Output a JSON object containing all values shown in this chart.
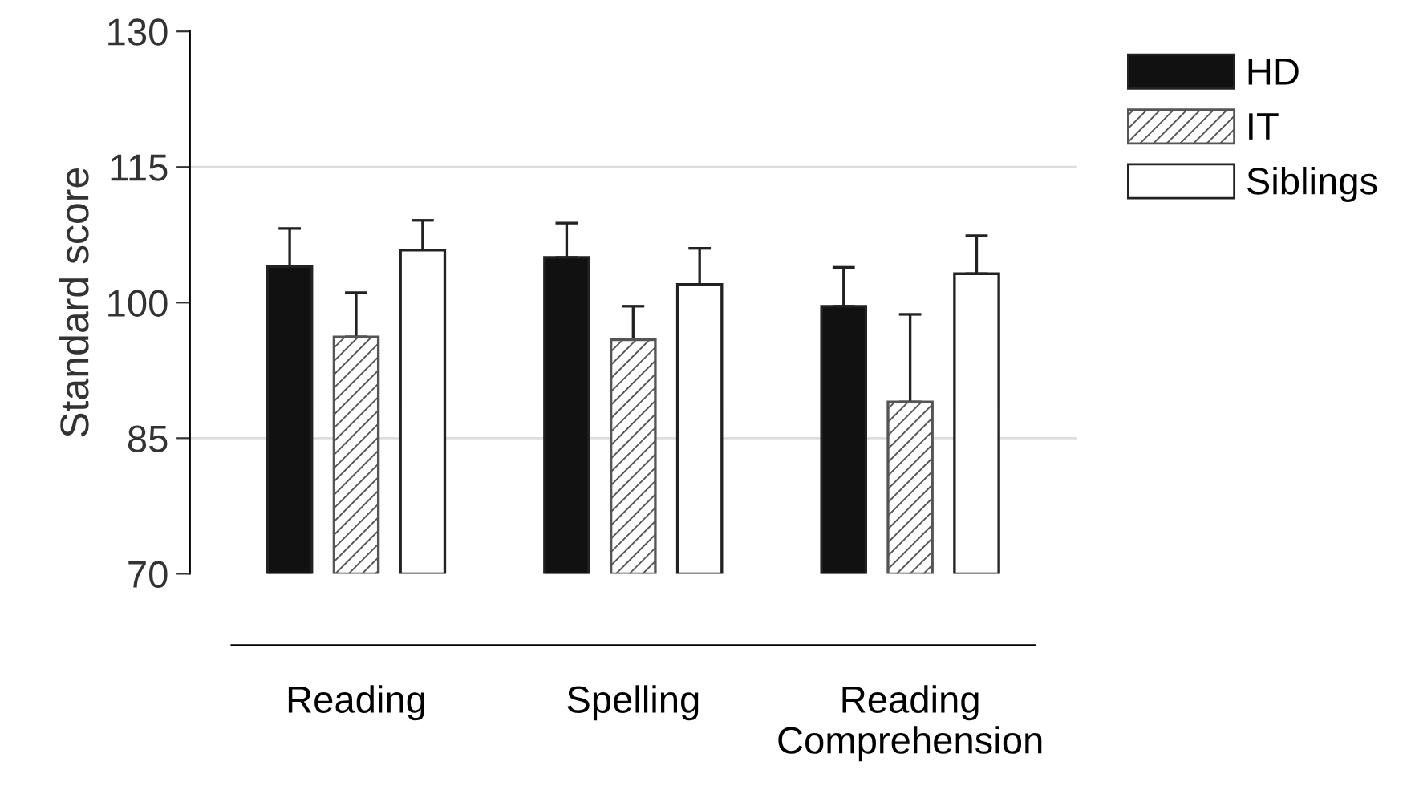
{
  "chart_data": {
    "type": "bar",
    "ylabel": "Standard score",
    "categories": [
      "Reading",
      "Spelling",
      "Reading\nComprehension"
    ],
    "series": [
      {
        "name": "HD",
        "color": "#111111",
        "values": [
          104.0,
          105.0,
          99.6
        ],
        "errors": [
          [
            104.0,
            108.2
          ],
          [
            105.0,
            108.8
          ],
          [
            99.6,
            103.9
          ]
        ]
      },
      {
        "name": "IT",
        "color": "#555555",
        "values": [
          96.2,
          95.9,
          89.0
        ],
        "errors": [
          [
            96.2,
            101.1
          ],
          [
            95.9,
            99.6
          ],
          [
            89.0,
            98.7
          ]
        ]
      },
      {
        "name": "Siblings",
        "color": "#ffffff",
        "values": [
          105.8,
          102.0,
          103.2
        ],
        "errors": [
          [
            105.8,
            109.1
          ],
          [
            102.0,
            106.0
          ],
          [
            103.2,
            107.4
          ]
        ]
      }
    ],
    "ylim": [
      70,
      130
    ],
    "yticks": [
      70,
      85,
      100,
      115,
      130
    ],
    "grid": false,
    "legend": "top right",
    "ref_lines": [
      {
        "axis": "y",
        "value": 85,
        "color": "#dddddd"
      },
      {
        "axis": "y",
        "value": 115,
        "color": "#dddddd"
      }
    ]
  }
}
